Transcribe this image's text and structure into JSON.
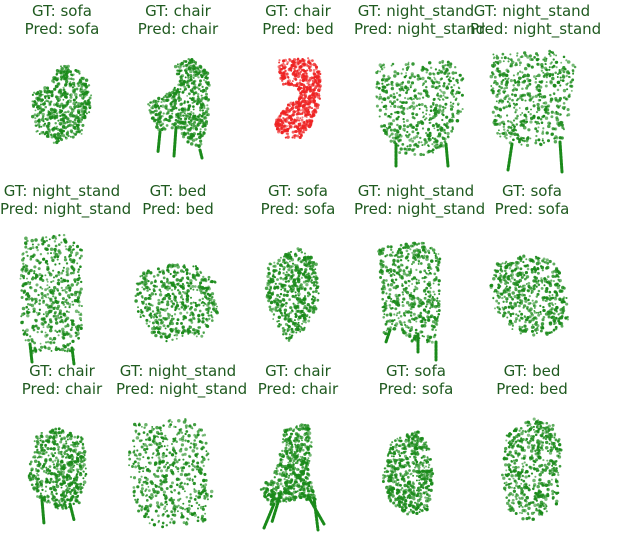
{
  "figure": {
    "colors": {
      "correct": "#1a8a1a",
      "incorrect": "#ee2222",
      "title": "#1f5a1f"
    },
    "panels": [
      {
        "gt": "GT: sofa",
        "pred": "Pred: sofa",
        "correct": true,
        "shape_icon": "sofa-pointcloud"
      },
      {
        "gt": "GT: chair",
        "pred": "Pred: chair",
        "correct": true,
        "shape_icon": "chair-pointcloud"
      },
      {
        "gt": "GT: chair",
        "pred": "Pred: bed",
        "correct": false,
        "shape_icon": "chair-pointcloud"
      },
      {
        "gt": "GT: night_stand",
        "pred": "Pred: night_stand",
        "correct": true,
        "shape_icon": "night-stand-pointcloud"
      },
      {
        "gt": "GT: night_stand",
        "pred": "Pred: night_stand",
        "correct": true,
        "shape_icon": "night-stand-pointcloud"
      },
      {
        "gt": "GT: night_stand",
        "pred": "Pred: night_stand",
        "correct": true,
        "shape_icon": "night-stand-pointcloud"
      },
      {
        "gt": "GT: bed",
        "pred": "Pred: bed",
        "correct": true,
        "shape_icon": "bed-pointcloud"
      },
      {
        "gt": "GT: sofa",
        "pred": "Pred: sofa",
        "correct": true,
        "shape_icon": "sofa-pointcloud"
      },
      {
        "gt": "GT: night_stand",
        "pred": "Pred: night_stand",
        "correct": true,
        "shape_icon": "night-stand-pointcloud"
      },
      {
        "gt": "GT: sofa",
        "pred": "Pred: sofa",
        "correct": true,
        "shape_icon": "sofa-pointcloud"
      },
      {
        "gt": "GT: chair",
        "pred": "Pred: chair",
        "correct": true,
        "shape_icon": "chair-pointcloud"
      },
      {
        "gt": "GT: night_stand",
        "pred": "Pred: night_stand",
        "correct": true,
        "shape_icon": "night-stand-pointcloud"
      },
      {
        "gt": "GT: chair",
        "pred": "Pred: chair",
        "correct": true,
        "shape_icon": "chair-pointcloud"
      },
      {
        "gt": "GT: sofa",
        "pred": "Pred: sofa",
        "correct": true,
        "shape_icon": "sofa-pointcloud"
      },
      {
        "gt": "GT: bed",
        "pred": "Pred: bed",
        "correct": true,
        "shape_icon": "bed-pointcloud"
      }
    ]
  }
}
